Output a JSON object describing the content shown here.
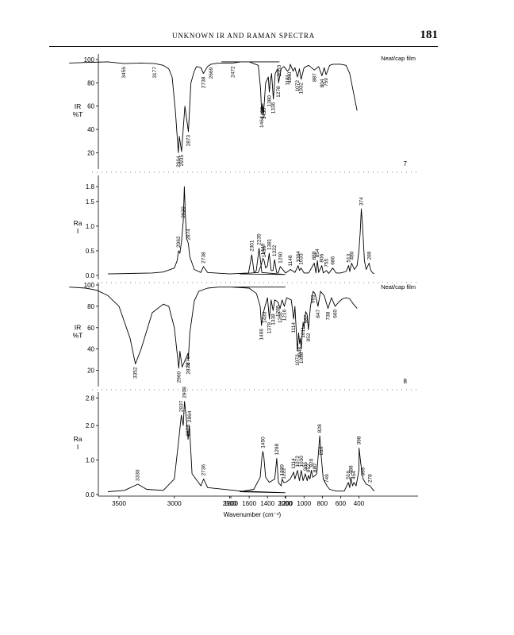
{
  "page": {
    "running_title": "UNKNOWN IR AND RAMAN SPECTRA",
    "page_number": "181"
  },
  "chart_data": [
    {
      "type": "line",
      "spectrum": "IR",
      "compound": "7",
      "ylabel": [
        "IR",
        "%T"
      ],
      "annotation": "Neat/cap film",
      "xlim": [
        4000,
        0
      ],
      "ylim": [
        10,
        100
      ],
      "yticks": [
        20,
        40,
        60,
        80,
        100
      ],
      "ytick_labels": [
        "20",
        "40",
        "60",
        "80",
        "100"
      ],
      "x": [
        3950,
        3800,
        3600,
        3456,
        3300,
        3177,
        3100,
        3050,
        3020,
        2990,
        2964,
        2955,
        2935,
        2905,
        2873,
        2850,
        2820,
        2800,
        2760,
        2738,
        2700,
        2669,
        2600,
        2472,
        2400,
        2200,
        2053,
        1900,
        1700,
        1600,
        1500,
        1475,
        1464,
        1455,
        1445,
        1435,
        1420,
        1390,
        1380,
        1370,
        1355,
        1336,
        1315,
        1290,
        1278,
        1250,
        1220,
        1181,
        1160,
        1150,
        1120,
        1100,
        1072,
        1050,
        1032,
        1000,
        950,
        887,
        840,
        804,
        780,
        759,
        720,
        680,
        600,
        540,
        500,
        450,
        420
      ],
      "y": [
        97,
        97.5,
        98,
        96.5,
        97,
        96.5,
        95,
        92,
        85,
        55,
        20,
        34,
        21,
        60,
        38,
        80,
        90,
        94,
        93,
        88,
        94,
        96,
        97,
        97,
        98,
        98,
        98,
        98,
        98,
        98,
        95,
        75,
        54,
        62,
        53,
        62,
        80,
        85,
        72,
        80,
        88,
        66,
        88,
        92,
        80,
        92,
        94,
        90,
        92,
        96,
        90,
        93,
        85,
        92,
        83,
        93,
        95,
        91,
        94,
        86,
        93,
        87,
        95,
        96,
        96,
        95,
        88,
        68,
        56
      ],
      "peak_labels": [
        "3456",
        "3177",
        "2964",
        "2935",
        "2873",
        "2738",
        "2669",
        "2472",
        "2053",
        "1464",
        "1455",
        "1436",
        "1380",
        "1336",
        "1278",
        "1181",
        "1160",
        "1072",
        "1032",
        "887",
        "804",
        "759"
      ],
      "panel_tag": "7"
    },
    {
      "type": "line",
      "spectrum": "Raman",
      "compound": "7",
      "ylabel": [
        "Ra",
        "I"
      ],
      "xlim": [
        4000,
        0
      ],
      "ylim": [
        0,
        1.9
      ],
      "yticks": [
        0.0,
        0.5,
        1.0,
        1.5,
        1.8
      ],
      "ytick_labels": [
        "0.0",
        "0.5",
        "1.0",
        "1.5",
        "1.8"
      ],
      "x": [
        3600,
        3400,
        3200,
        3100,
        3000,
        2975,
        2962,
        2950,
        2935,
        2920,
        2910,
        2900,
        2890,
        2874,
        2860,
        2820,
        2760,
        2738,
        2700,
        2500,
        2330,
        2301,
        2280,
        2260,
        2235,
        2210,
        2000,
        1700,
        1500,
        1470,
        1449,
        1436,
        1420,
        1400,
        1381,
        1360,
        1340,
        1322,
        1300,
        1280,
        1260,
        1200,
        1148,
        1100,
        1064,
        1050,
        1033,
        1000,
        950,
        888,
        870,
        854,
        840,
        806,
        790,
        755,
        730,
        686,
        650,
        600,
        540,
        513,
        500,
        480,
        450,
        420,
        400,
        385,
        374,
        360,
        340,
        320,
        289,
        270,
        250,
        230
      ],
      "y": [
        0.03,
        0.04,
        0.05,
        0.07,
        0.15,
        0.3,
        0.5,
        0.45,
        0.7,
        1.1,
        1.8,
        1.2,
        0.75,
        0.65,
        0.38,
        0.12,
        0.06,
        0.18,
        0.06,
        0.03,
        0.05,
        0.42,
        0.06,
        0.1,
        0.55,
        0.06,
        0.02,
        0.03,
        0.06,
        0.2,
        0.35,
        0.3,
        0.15,
        0.2,
        0.45,
        0.1,
        0.1,
        0.32,
        0.06,
        0.06,
        0.18,
        0.05,
        0.12,
        0.06,
        0.2,
        0.1,
        0.15,
        0.05,
        0.05,
        0.25,
        0.05,
        0.3,
        0.06,
        0.2,
        0.05,
        0.1,
        0.04,
        0.15,
        0.05,
        0.05,
        0.08,
        0.2,
        0.08,
        0.25,
        0.12,
        0.2,
        0.5,
        0.9,
        1.35,
        1.0,
        0.3,
        0.12,
        0.25,
        0.1,
        0.05,
        0.04
      ],
      "peak_labels": [
        "2962",
        "2920",
        "2874",
        "2738",
        "2301",
        "2235",
        "1449",
        "1436",
        "1381",
        "1322",
        "1260",
        "1148",
        "1064",
        "1033",
        "888",
        "854",
        "806",
        "755",
        "686",
        "513",
        "480",
        "374",
        "289"
      ]
    },
    {
      "type": "line",
      "spectrum": "IR",
      "compound": "8",
      "ylabel": [
        "IR",
        "%T"
      ],
      "annotation": "Neat/cap film",
      "xlim": [
        4000,
        0
      ],
      "ylim": [
        10,
        100
      ],
      "yticks": [
        20,
        40,
        60,
        80,
        100
      ],
      "ytick_labels": [
        "20",
        "40",
        "60",
        "80",
        "100"
      ],
      "x": [
        3950,
        3800,
        3700,
        3600,
        3500,
        3400,
        3352,
        3300,
        3200,
        3100,
        3050,
        3000,
        2960,
        2950,
        2930,
        2876,
        2874,
        2860,
        2820,
        2780,
        2700,
        2600,
        2500,
        2300,
        2000,
        1800,
        1600,
        1520,
        1480,
        1466,
        1450,
        1433,
        1400,
        1379,
        1360,
        1338,
        1320,
        1285,
        1262,
        1240,
        1216,
        1190,
        1140,
        1114,
        1100,
        1073,
        1060,
        1048,
        1040,
        1030,
        1010,
        1000,
        982,
        965,
        952,
        930,
        901,
        880,
        847,
        820,
        780,
        738,
        700,
        660,
        620,
        580,
        540,
        500,
        460,
        420
      ],
      "y": [
        98,
        97,
        95,
        90,
        80,
        50,
        26,
        40,
        74,
        82,
        80,
        60,
        22,
        38,
        23,
        36,
        30,
        55,
        85,
        94,
        97,
        98,
        98,
        98,
        98,
        98,
        97,
        92,
        80,
        62,
        72,
        78,
        88,
        68,
        86,
        76,
        86,
        84,
        78,
        86,
        80,
        88,
        86,
        68,
        80,
        38,
        55,
        45,
        50,
        40,
        65,
        60,
        75,
        72,
        58,
        80,
        94,
        92,
        80,
        94,
        90,
        78,
        88,
        80,
        84,
        87,
        88,
        87,
        82,
        78
      ],
      "peak_labels": [
        "3352",
        "2960",
        "2876",
        "2874",
        "1466",
        "1433",
        "1379",
        "1338",
        "1285",
        "1262",
        "1216",
        "1114",
        "1073",
        "1048",
        "1030",
        "1011",
        "982",
        "952",
        "901",
        "847",
        "738",
        "660"
      ],
      "panel_tag": "8"
    },
    {
      "type": "line",
      "spectrum": "Raman",
      "compound": "8",
      "ylabel": [
        "Ra",
        "I"
      ],
      "xlim": [
        4000,
        0
      ],
      "ylim": [
        0,
        2.9
      ],
      "yticks": [
        0.0,
        1.0,
        2.0,
        2.8
      ],
      "ytick_labels": [
        "0.0",
        "1.0",
        "2.0",
        "2.8"
      ],
      "x": [
        3600,
        3450,
        3330,
        3250,
        3100,
        3000,
        2960,
        2937,
        2920,
        2908,
        2895,
        2876,
        2864,
        2840,
        2760,
        2736,
        2700,
        2400,
        2000,
        1700,
        1550,
        1480,
        1460,
        1450,
        1440,
        1420,
        1380,
        1320,
        1298,
        1280,
        1250,
        1239,
        1222,
        1200,
        1150,
        1114,
        1100,
        1072,
        1050,
        1030,
        1010,
        986,
        965,
        952,
        935,
        920,
        905,
        880,
        860,
        828,
        820,
        810,
        790,
        749,
        720,
        650,
        560,
        516,
        500,
        488,
        470,
        454,
        430,
        400,
        398,
        380,
        355,
        320,
        278,
        250,
        230
      ],
      "y": [
        0.08,
        0.12,
        0.3,
        0.15,
        0.12,
        0.45,
        1.6,
        2.3,
        2.0,
        2.7,
        2.3,
        1.6,
        2.0,
        0.6,
        0.25,
        0.45,
        0.2,
        0.1,
        0.05,
        0.08,
        0.15,
        0.5,
        1.1,
        1.25,
        1.1,
        0.5,
        0.35,
        0.45,
        1.05,
        0.35,
        0.25,
        0.45,
        0.35,
        0.35,
        0.45,
        0.65,
        0.45,
        0.7,
        0.4,
        0.7,
        0.4,
        0.6,
        0.4,
        0.55,
        0.45,
        0.7,
        0.5,
        0.55,
        0.6,
        1.7,
        1.4,
        1.05,
        0.45,
        0.25,
        0.15,
        0.1,
        0.1,
        0.35,
        0.2,
        0.5,
        0.25,
        0.35,
        0.25,
        0.7,
        1.35,
        0.9,
        0.45,
        0.3,
        0.25,
        0.15,
        0.1
      ],
      "peak_labels": [
        "3330",
        "2937",
        "2908",
        "2876",
        "2864",
        "2736",
        "1450",
        "1298",
        "1239",
        "1222",
        "1114",
        "1072",
        "1030",
        "986",
        "952",
        "920",
        "880",
        "828",
        "810",
        "749",
        "516",
        "488",
        "454",
        "398",
        "355",
        "278"
      ]
    }
  ],
  "x_axis": {
    "label": "Wavenumber (cm⁻¹)",
    "ticks": [
      3500,
      3000,
      2500,
      2000,
      1800,
      1600,
      1400,
      1200,
      1000,
      800,
      600,
      400
    ],
    "tick_labels": [
      "3500",
      "3000",
      "2500",
      "2000",
      "1800",
      "1600",
      "1400",
      "1200",
      "1000",
      "800",
      "600",
      "400"
    ]
  }
}
